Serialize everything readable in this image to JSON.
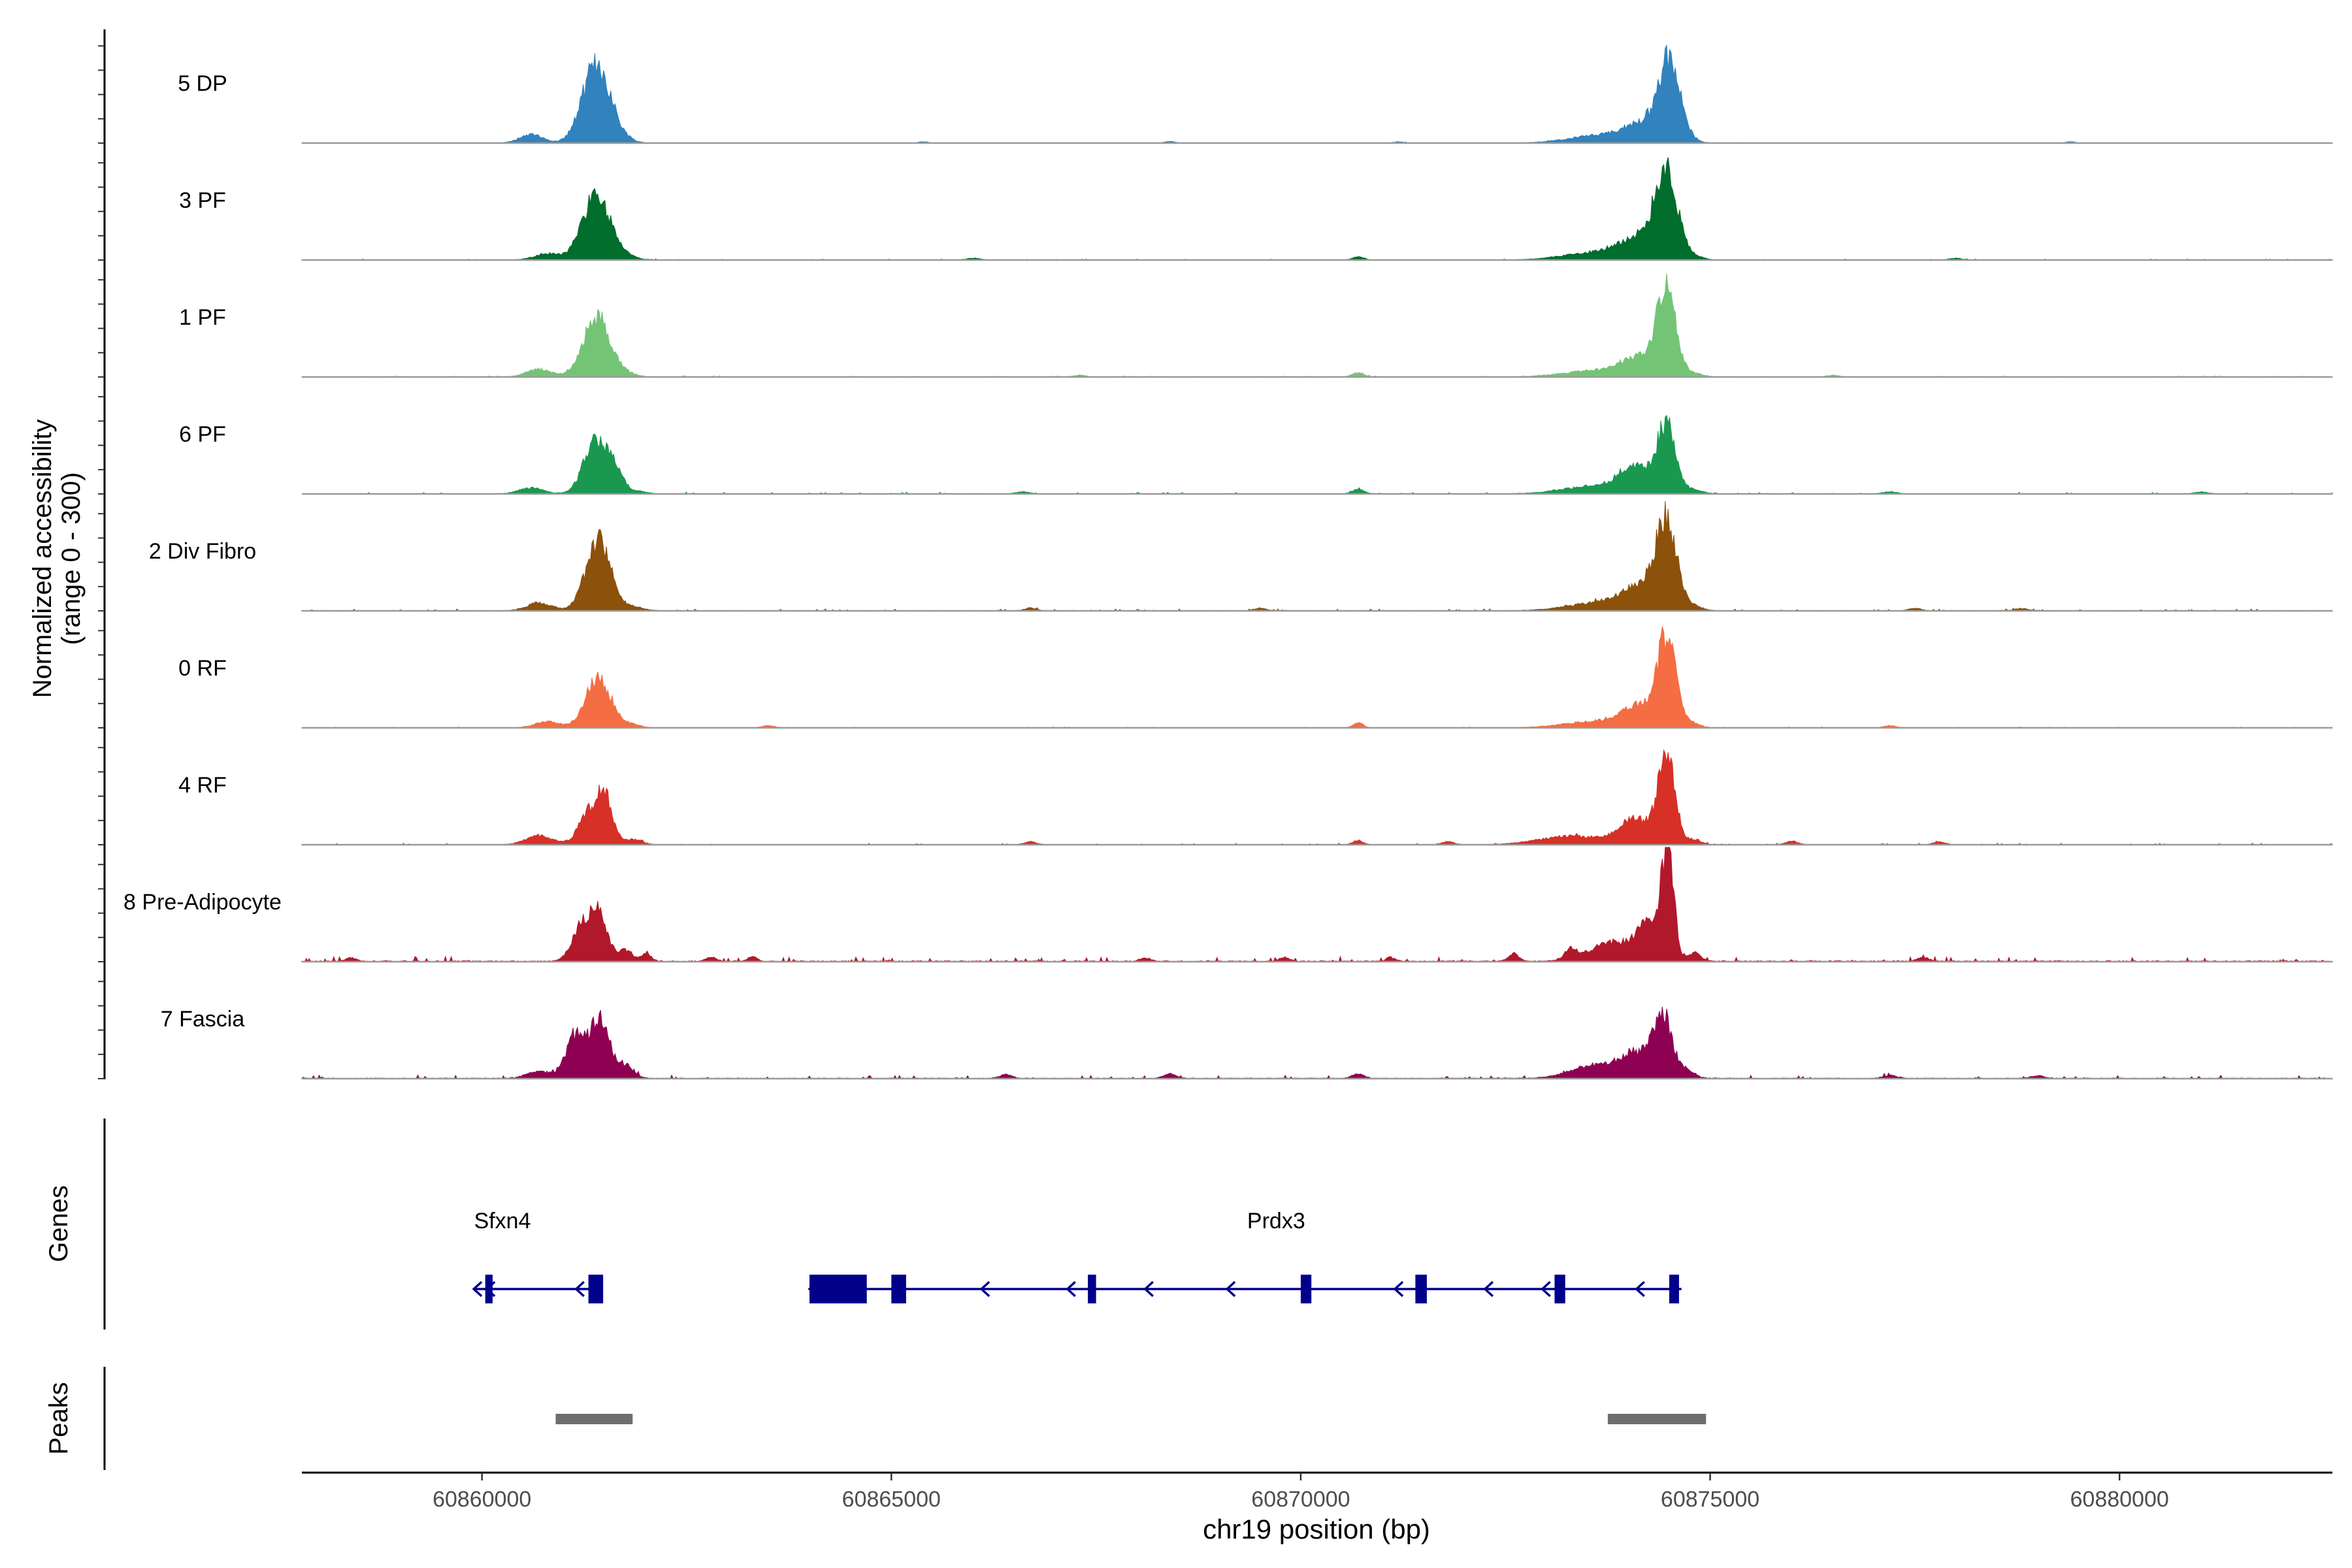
{
  "chart_data": {
    "type": "area",
    "title": "",
    "xlabel": "chr19 position (bp)",
    "ylabel_line1": "Normalized accessibility",
    "ylabel_line2": "(range 0 - 300)",
    "ylim": [
      0,
      300
    ],
    "xlim": [
      60857800,
      60882600
    ],
    "x_ticks": [
      60860000,
      60865000,
      60870000,
      60875000,
      60880000
    ],
    "x_tick_labels": [
      "60860000",
      "60865000",
      "60870000",
      "60875000",
      "60880000"
    ],
    "genes_label": "Genes",
    "peaks_label": "Peaks",
    "series": [
      {
        "name": "5 DP",
        "color": "#3182BD",
        "noise": 0.3,
        "values": [
          [
            60860600,
            20,
            140
          ],
          [
            60861400,
            185,
            170
          ],
          [
            60861750,
            5,
            120
          ],
          [
            60873700,
            18,
            400
          ],
          [
            60874200,
            40,
            220
          ],
          [
            60874500,
            178,
            130
          ],
          [
            60874750,
            6,
            100
          ],
          [
            60865400,
            3,
            60
          ],
          [
            60868400,
            4,
            60
          ],
          [
            60871200,
            3,
            60
          ],
          [
            60879400,
            3,
            60
          ]
        ]
      },
      {
        "name": "3 PF",
        "color": "#006D2C",
        "noise": 0.5,
        "values": [
          [
            60860800,
            15,
            150
          ],
          [
            60861400,
            150,
            170
          ],
          [
            60861750,
            8,
            120
          ],
          [
            60873700,
            20,
            420
          ],
          [
            60874200,
            50,
            230
          ],
          [
            60874470,
            190,
            130
          ],
          [
            60874800,
            8,
            100
          ],
          [
            60870700,
            7,
            70
          ],
          [
            60866000,
            4,
            80
          ],
          [
            60878000,
            4,
            80
          ]
        ]
      },
      {
        "name": "1 PF",
        "color": "#74C476",
        "noise": 0.6,
        "values": [
          [
            60860700,
            18,
            150
          ],
          [
            60861400,
            140,
            160
          ],
          [
            60861750,
            8,
            120
          ],
          [
            60873600,
            15,
            380
          ],
          [
            60874150,
            45,
            220
          ],
          [
            60874470,
            210,
            110
          ],
          [
            60874800,
            8,
            100
          ],
          [
            60870700,
            10,
            70
          ],
          [
            60867300,
            4,
            70
          ],
          [
            60876500,
            4,
            70
          ]
        ]
      },
      {
        "name": "6 PF",
        "color": "#1A9850",
        "noise": 0.9,
        "values": [
          [
            60860600,
            14,
            140
          ],
          [
            60861400,
            125,
            150
          ],
          [
            60861650,
            35,
            90
          ],
          [
            60861900,
            6,
            110
          ],
          [
            60873600,
            18,
            380
          ],
          [
            60874100,
            60,
            200
          ],
          [
            60874470,
            155,
            110
          ],
          [
            60874800,
            10,
            100
          ],
          [
            60870700,
            11,
            70
          ],
          [
            60866600,
            5,
            80
          ],
          [
            60877200,
            5,
            80
          ],
          [
            60881000,
            4,
            80
          ]
        ]
      },
      {
        "name": "2 Div Fibro",
        "color": "#8C510A",
        "noise": 1.0,
        "values": [
          [
            60860700,
            18,
            150
          ],
          [
            60861420,
            165,
            150
          ],
          [
            60861850,
            8,
            120
          ],
          [
            60873700,
            20,
            400
          ],
          [
            60874200,
            55,
            220
          ],
          [
            60874470,
            195,
            120
          ],
          [
            60874800,
            10,
            100
          ],
          [
            60866700,
            6,
            70
          ],
          [
            60869500,
            6,
            70
          ],
          [
            60877500,
            6,
            70
          ],
          [
            60878800,
            5,
            80
          ]
        ]
      },
      {
        "name": "0 RF",
        "color": "#F46D43",
        "noise": 0.5,
        "values": [
          [
            60860800,
            14,
            150
          ],
          [
            60861420,
            120,
            150
          ],
          [
            60861800,
            8,
            120
          ],
          [
            60873600,
            15,
            380
          ],
          [
            60874150,
            50,
            210
          ],
          [
            60874470,
            200,
            110
          ],
          [
            60874780,
            10,
            90
          ],
          [
            60870700,
            12,
            60
          ],
          [
            60863500,
            5,
            70
          ],
          [
            60877200,
            5,
            70
          ]
        ]
      },
      {
        "name": "4 RF",
        "color": "#D73027",
        "noise": 0.8,
        "values": [
          [
            60860700,
            22,
            160
          ],
          [
            60861300,
            70,
            120
          ],
          [
            60861500,
            105,
            100
          ],
          [
            60861850,
            12,
            110
          ],
          [
            60873300,
            20,
            380
          ],
          [
            60874100,
            60,
            200
          ],
          [
            60874470,
            205,
            100
          ],
          [
            60874800,
            12,
            90
          ],
          [
            60870700,
            10,
            60
          ],
          [
            60866700,
            7,
            70
          ],
          [
            60871800,
            7,
            70
          ],
          [
            60876000,
            8,
            70
          ],
          [
            60877800,
            7,
            70
          ]
        ]
      },
      {
        "name": "8 Pre-Adipocyte",
        "color": "#B2182B",
        "noise": 2.6,
        "values": [
          [
            60861200,
            70,
            110
          ],
          [
            60861420,
            110,
            110
          ],
          [
            60861750,
            25,
            80
          ],
          [
            60862000,
            20,
            60
          ],
          [
            60873800,
            45,
            250
          ],
          [
            60874250,
            80,
            140
          ],
          [
            60874480,
            260,
            75
          ],
          [
            60874800,
            20,
            80
          ],
          [
            60873300,
            25,
            80
          ],
          [
            60872600,
            18,
            60
          ],
          [
            60862800,
            10,
            60
          ],
          [
            60863300,
            10,
            60
          ],
          [
            60858400,
            8,
            60
          ],
          [
            60868100,
            8,
            60
          ],
          [
            60869800,
            9,
            60
          ],
          [
            60871100,
            9,
            60
          ],
          [
            60877600,
            10,
            60
          ]
        ]
      },
      {
        "name": "7 Fascia",
        "color": "#8E0152",
        "noise": 1.8,
        "values": [
          [
            60861150,
            100,
            120
          ],
          [
            60861450,
            140,
            110
          ],
          [
            60861750,
            30,
            100
          ],
          [
            60860700,
            15,
            150
          ],
          [
            60873600,
            30,
            300
          ],
          [
            60874100,
            55,
            180
          ],
          [
            60874420,
            145,
            110
          ],
          [
            60874700,
            20,
            100
          ],
          [
            60868400,
            11,
            70
          ],
          [
            60870700,
            11,
            70
          ],
          [
            60866400,
            9,
            70
          ],
          [
            60877200,
            7,
            80
          ],
          [
            60879000,
            6,
            80
          ]
        ]
      }
    ],
    "genes": [
      {
        "name": "Sfxn4",
        "label_x": 60860250,
        "start": 60859900,
        "end": 60861450,
        "exons": [
          [
            60860040,
            60860130
          ],
          [
            60861300,
            60861480
          ]
        ],
        "arrows": [
          60860060,
          60861150
        ]
      },
      {
        "name": "Prdx3",
        "label_x": 60869700,
        "start": 60864000,
        "end": 60874650,
        "exons": [
          [
            60864000,
            60864700
          ],
          [
            60865000,
            60865180
          ],
          [
            60867400,
            60867500
          ],
          [
            60870000,
            60870130
          ],
          [
            60871400,
            60871540
          ],
          [
            60873100,
            60873230
          ],
          [
            60874500,
            60874620
          ]
        ],
        "arrows": [
          60866100,
          60867150,
          60868100,
          60869100,
          60871150,
          60872250,
          60872950,
          60874100
        ]
      }
    ],
    "peaks": [
      [
        60860900,
        60861840
      ],
      [
        60873750,
        60874950
      ]
    ]
  }
}
